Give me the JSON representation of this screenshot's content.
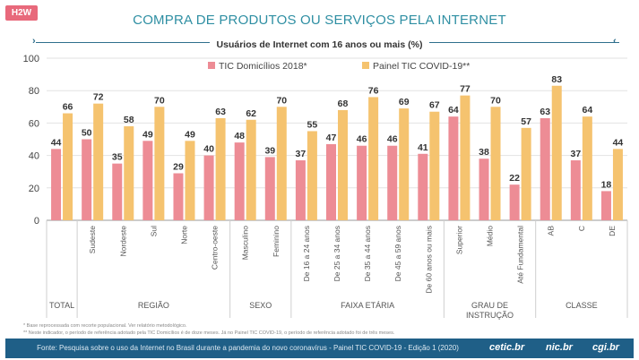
{
  "header": {
    "badge": "H2W",
    "title": "COMPRA DE PRODUTOS OU SERVIÇOS PELA INTERNET",
    "subtitle": "Usuários de Internet com 16 anos ou mais (%)"
  },
  "notes": {
    "line1": "* Base reprocessada com recorte populacional. Ver relatório metodológico.",
    "line2": "** Neste indicador, o período de referência adotado pela TIC Domicílios é de doze meses. Já no Painel TIC COVID-19, o período de referência adotado foi de três meses."
  },
  "footer": {
    "source": "Fonte: Pesquisa sobre o uso da Internet no Brasil durante a pandemia do novo coronavírus - Painel TIC COVID-19 - Edição 1 (2020)",
    "logos": [
      "cetic.br",
      "nic.br",
      "cgi.br"
    ]
  },
  "colors": {
    "series1": "#ed8c95",
    "series2": "#f5c36f",
    "accent": "#2f8fa3",
    "footer": "#1f5f87"
  },
  "chart_data": {
    "type": "bar",
    "ylim": [
      0,
      100
    ],
    "yticks": [
      0,
      20,
      40,
      60,
      80,
      100
    ],
    "legend_position": "top",
    "categories": [
      "",
      "Sudeste",
      "Nordeste",
      "Sul",
      "Norte",
      "Centro-oeste",
      "Masculino",
      "Feminino",
      "De 16 a 24 anos",
      "De 25 a 34 anos",
      "De 35 a 44 anos",
      "De 45 a 59 anos",
      "De 60 anos ou mais",
      "Superior",
      "Médio",
      "Até Fundamental",
      "AB",
      "C",
      "DE"
    ],
    "groups": [
      {
        "label": "TOTAL",
        "count": 1
      },
      {
        "label": "REGIÃO",
        "count": 5
      },
      {
        "label": "SEXO",
        "count": 2
      },
      {
        "label": "FAIXA ETÁRIA",
        "count": 5
      },
      {
        "label": "GRAU DE INSTRUÇÃO",
        "count": 3
      },
      {
        "label": "CLASSE",
        "count": 3
      }
    ],
    "series": [
      {
        "name": "TIC Domicílios 2018*",
        "values": [
          44,
          50,
          35,
          49,
          29,
          40,
          48,
          39,
          37,
          47,
          46,
          46,
          41,
          64,
          38,
          22,
          63,
          37,
          18
        ]
      },
      {
        "name": "Painel TIC COVID-19**",
        "values": [
          66,
          72,
          58,
          70,
          49,
          63,
          62,
          70,
          55,
          68,
          76,
          69,
          67,
          77,
          70,
          57,
          83,
          64,
          44
        ]
      }
    ]
  }
}
